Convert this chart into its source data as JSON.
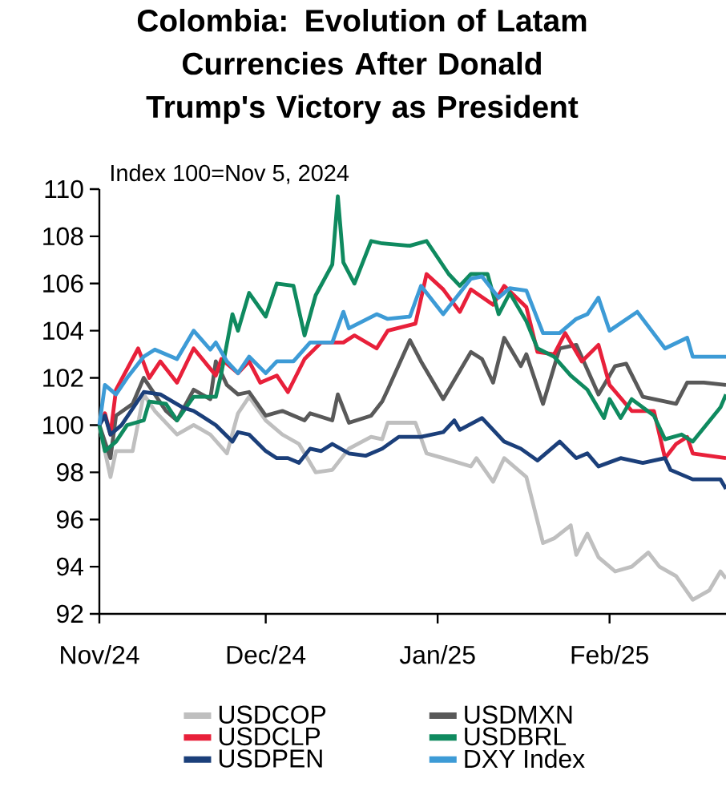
{
  "chart_data": {
    "type": "line",
    "title": "Colombia: Evolution of Latam Currencies After Donald Trump's Victory as President",
    "subtitle": "Index 100=Nov 5, 2024",
    "xlim": [
      "2024-11-01",
      "2025-02-22"
    ],
    "ylim": [
      92,
      110
    ],
    "yticks": [
      92,
      94,
      96,
      98,
      100,
      102,
      104,
      106,
      108,
      110
    ],
    "xticks": [
      {
        "value": "2024-11-01",
        "label": "Nov/24"
      },
      {
        "value": "2024-12-01",
        "label": "Dec/24"
      },
      {
        "value": "2025-01-01",
        "label": "Jan/25"
      },
      {
        "value": "2025-02-01",
        "label": "Feb/25"
      }
    ],
    "legend": "bottom",
    "marker": "none",
    "line_style": "solid",
    "series": [
      {
        "name": "USDCOP",
        "color": "#bfbfbf",
        "x": [
          "2024-11-01",
          "2024-11-03",
          "2024-11-04",
          "2024-11-07",
          "2024-11-09",
          "2024-11-11",
          "2024-11-15",
          "2024-11-18",
          "2024-11-21",
          "2024-11-24",
          "2024-11-26",
          "2024-11-28",
          "2024-12-01",
          "2024-12-04",
          "2024-12-07",
          "2024-12-10",
          "2024-12-13",
          "2024-12-16",
          "2024-12-20",
          "2024-12-22",
          "2024-12-23",
          "2024-12-28",
          "2024-12-30",
          "2025-01-02",
          "2025-01-07",
          "2025-01-08",
          "2025-01-11",
          "2025-01-13",
          "2025-01-17",
          "2025-01-20",
          "2025-01-22",
          "2025-01-25",
          "2025-01-26",
          "2025-01-28",
          "2025-01-30",
          "2025-02-02",
          "2025-02-05",
          "2025-02-08",
          "2025-02-10",
          "2025-02-13",
          "2025-02-16",
          "2025-02-19",
          "2025-02-21",
          "2025-02-22"
        ],
        "values": [
          100,
          97.8,
          98.9,
          98.9,
          101.3,
          100.6,
          99.6,
          100,
          99.6,
          98.8,
          100.5,
          101.2,
          100.2,
          99.6,
          99.2,
          98,
          98.1,
          99,
          99.5,
          99.4,
          100.1,
          100.1,
          98.8,
          98.6,
          98.25,
          98.6,
          97.6,
          98.6,
          97.8,
          95,
          95.2,
          95.75,
          94.5,
          95.4,
          94.4,
          93.8,
          94,
          94.6,
          94,
          93.6,
          92.6,
          93,
          93.8,
          93.5
        ]
      },
      {
        "name": "USDMXN",
        "color": "#595959",
        "x": [
          "2024-11-01",
          "2024-11-03",
          "2024-11-04",
          "2024-11-07",
          "2024-11-09",
          "2024-11-11",
          "2024-11-13",
          "2024-11-15",
          "2024-11-18",
          "2024-11-21",
          "2024-11-22",
          "2024-11-24",
          "2024-11-26",
          "2024-11-28",
          "2024-12-01",
          "2024-12-04",
          "2024-12-08",
          "2024-12-09",
          "2024-12-13",
          "2024-12-14",
          "2024-12-16",
          "2024-12-20",
          "2024-12-22",
          "2024-12-23",
          "2024-12-27",
          "2024-12-29",
          "2025-01-02",
          "2025-01-07",
          "2025-01-09",
          "2025-01-11",
          "2025-01-13",
          "2025-01-16",
          "2025-01-17",
          "2025-01-20",
          "2025-01-23",
          "2025-01-26",
          "2025-01-30",
          "2025-02-02",
          "2025-02-04",
          "2025-02-07",
          "2025-02-13",
          "2025-02-15",
          "2025-02-18",
          "2025-02-22"
        ],
        "values": [
          100,
          98.6,
          100.4,
          100.9,
          102,
          101.3,
          100.6,
          100.2,
          101.5,
          101.1,
          102.7,
          101.7,
          101.3,
          101.4,
          100.4,
          100.6,
          100.2,
          100.5,
          100.2,
          101.3,
          100.1,
          100.4,
          101,
          101.5,
          103.6,
          102.7,
          101.1,
          103.1,
          102.8,
          101.8,
          103.7,
          102.5,
          103,
          100.9,
          103.25,
          103.4,
          101.3,
          102.5,
          102.6,
          101.2,
          100.9,
          101.8,
          101.8,
          101.7
        ]
      },
      {
        "name": "USDCLP",
        "color": "#e8203a",
        "x": [
          "2024-11-01",
          "2024-11-02",
          "2024-11-03",
          "2024-11-04",
          "2024-11-08",
          "2024-11-10",
          "2024-11-12",
          "2024-11-15",
          "2024-11-18",
          "2024-11-22",
          "2024-11-23",
          "2024-11-26",
          "2024-11-28",
          "2024-11-30",
          "2024-12-03",
          "2024-12-05",
          "2024-12-08",
          "2024-12-11",
          "2024-12-15",
          "2024-12-17",
          "2024-12-21",
          "2024-12-23",
          "2024-12-28",
          "2024-12-30",
          "2025-01-02",
          "2025-01-05",
          "2025-01-07",
          "2025-01-11",
          "2025-01-13",
          "2025-01-17",
          "2025-01-19",
          "2025-01-22",
          "2025-01-24",
          "2025-01-27",
          "2025-01-30",
          "2025-02-01",
          "2025-02-05",
          "2025-02-09",
          "2025-02-11",
          "2025-02-13",
          "2025-02-15",
          "2025-02-16",
          "2025-02-22"
        ],
        "values": [
          100,
          100.5,
          99.6,
          101.5,
          103.25,
          102,
          102.7,
          101.8,
          103.25,
          102.1,
          102.8,
          102.2,
          102.7,
          101.8,
          102.1,
          101.4,
          102.8,
          103.5,
          103.5,
          103.8,
          103.25,
          104,
          104.3,
          106.4,
          105.75,
          104.8,
          105.75,
          105.1,
          105.9,
          105,
          103.1,
          103,
          103.9,
          102.7,
          103.4,
          101.7,
          100.6,
          100.6,
          98.6,
          99.2,
          99.5,
          98.8,
          98.6
        ]
      },
      {
        "name": "USDBRL",
        "color": "#0f8a5f",
        "x": [
          "2024-11-01",
          "2024-11-02",
          "2024-11-04",
          "2024-11-06",
          "2024-11-09",
          "2024-11-10",
          "2024-11-13",
          "2024-11-15",
          "2024-11-18",
          "2024-11-22",
          "2024-11-23",
          "2024-11-25",
          "2024-11-26",
          "2024-11-28",
          "2024-12-01",
          "2024-12-03",
          "2024-12-06",
          "2024-12-08",
          "2024-12-10",
          "2024-12-13",
          "2024-12-14",
          "2024-12-15",
          "2024-12-17",
          "2024-12-20",
          "2024-12-22",
          "2024-12-27",
          "2024-12-30",
          "2025-01-03",
          "2025-01-05",
          "2025-01-07",
          "2025-01-10",
          "2025-01-12",
          "2025-01-14",
          "2025-01-17",
          "2025-01-19",
          "2025-01-22",
          "2025-01-25",
          "2025-01-28",
          "2025-01-31",
          "2025-02-01",
          "2025-02-03",
          "2025-02-05",
          "2025-02-09",
          "2025-02-11",
          "2025-02-14",
          "2025-02-16",
          "2025-02-21",
          "2025-02-22"
        ],
        "values": [
          100,
          98.9,
          99.3,
          100,
          100.2,
          101,
          100.9,
          100.2,
          101.2,
          101.2,
          102.2,
          104.7,
          104,
          105.6,
          104.6,
          106,
          105.9,
          103.8,
          105.5,
          106.8,
          109.7,
          106.9,
          106,
          107.8,
          107.7,
          107.6,
          107.8,
          106.4,
          105.9,
          106.4,
          106.4,
          104.7,
          105.6,
          104.4,
          103.25,
          102.9,
          102.1,
          101.5,
          100.3,
          101.1,
          100.3,
          101.1,
          100.4,
          99.4,
          99.6,
          99.3,
          100.75,
          101.3
        ]
      },
      {
        "name": "USDPEN",
        "color": "#1b3f7a",
        "x": [
          "2024-11-01",
          "2024-11-02",
          "2024-11-03",
          "2024-11-05",
          "2024-11-09",
          "2024-11-12",
          "2024-11-16",
          "2024-11-18",
          "2024-11-22",
          "2024-11-25",
          "2024-11-26",
          "2024-11-28",
          "2024-12-01",
          "2024-12-03",
          "2024-12-05",
          "2024-12-07",
          "2024-12-09",
          "2024-12-11",
          "2024-12-13",
          "2024-12-16",
          "2024-12-19",
          "2024-12-22",
          "2024-12-25",
          "2024-12-29",
          "2025-01-02",
          "2025-01-04",
          "2025-01-05",
          "2025-01-09",
          "2025-01-13",
          "2025-01-16",
          "2025-01-19",
          "2025-01-23",
          "2025-01-26",
          "2025-01-28",
          "2025-01-30",
          "2025-02-03",
          "2025-02-07",
          "2025-02-11",
          "2025-02-12",
          "2025-02-16",
          "2025-02-21",
          "2025-02-22"
        ],
        "values": [
          100,
          100.4,
          99.6,
          100,
          101.4,
          101.3,
          100.75,
          100.6,
          100,
          99.3,
          99.7,
          99.6,
          98.9,
          98.6,
          98.6,
          98.4,
          99,
          98.9,
          99.2,
          98.8,
          98.7,
          99,
          99.5,
          99.5,
          99.7,
          100.2,
          99.8,
          100.3,
          99.3,
          99,
          98.5,
          99.3,
          98.6,
          98.8,
          98.25,
          98.6,
          98.4,
          98.6,
          98.1,
          97.7,
          97.7,
          97.3
        ]
      },
      {
        "name": "DXY Index",
        "color": "#3d9bd6",
        "x": [
          "2024-11-01",
          "2024-11-02",
          "2024-11-04",
          "2024-11-06",
          "2024-11-09",
          "2024-11-11",
          "2024-11-15",
          "2024-11-18",
          "2024-11-21",
          "2024-11-22",
          "2024-11-24",
          "2024-11-26",
          "2024-11-28",
          "2024-12-01",
          "2024-12-03",
          "2024-12-06",
          "2024-12-09",
          "2024-12-13",
          "2024-12-15",
          "2024-12-16",
          "2024-12-21",
          "2024-12-23",
          "2024-12-27",
          "2024-12-29",
          "2025-01-02",
          "2025-01-07",
          "2025-01-09",
          "2025-01-12",
          "2025-01-14",
          "2025-01-17",
          "2025-01-20",
          "2025-01-23",
          "2025-01-26",
          "2025-01-28",
          "2025-01-30",
          "2025-02-01",
          "2025-02-06",
          "2025-02-11",
          "2025-02-15",
          "2025-02-16",
          "2025-02-22"
        ],
        "values": [
          100,
          101.7,
          101.3,
          102,
          102.9,
          103.2,
          102.8,
          104,
          103.2,
          103.5,
          102.7,
          102.2,
          102.9,
          102.2,
          102.7,
          102.7,
          103.5,
          103.5,
          104.8,
          104.1,
          104.7,
          104.5,
          104.6,
          105.9,
          104.7,
          106.2,
          106.3,
          105.4,
          105.8,
          105.7,
          103.9,
          103.9,
          104.5,
          104.7,
          105.4,
          104,
          104.8,
          103.25,
          103.7,
          102.9,
          102.9
        ]
      }
    ]
  }
}
